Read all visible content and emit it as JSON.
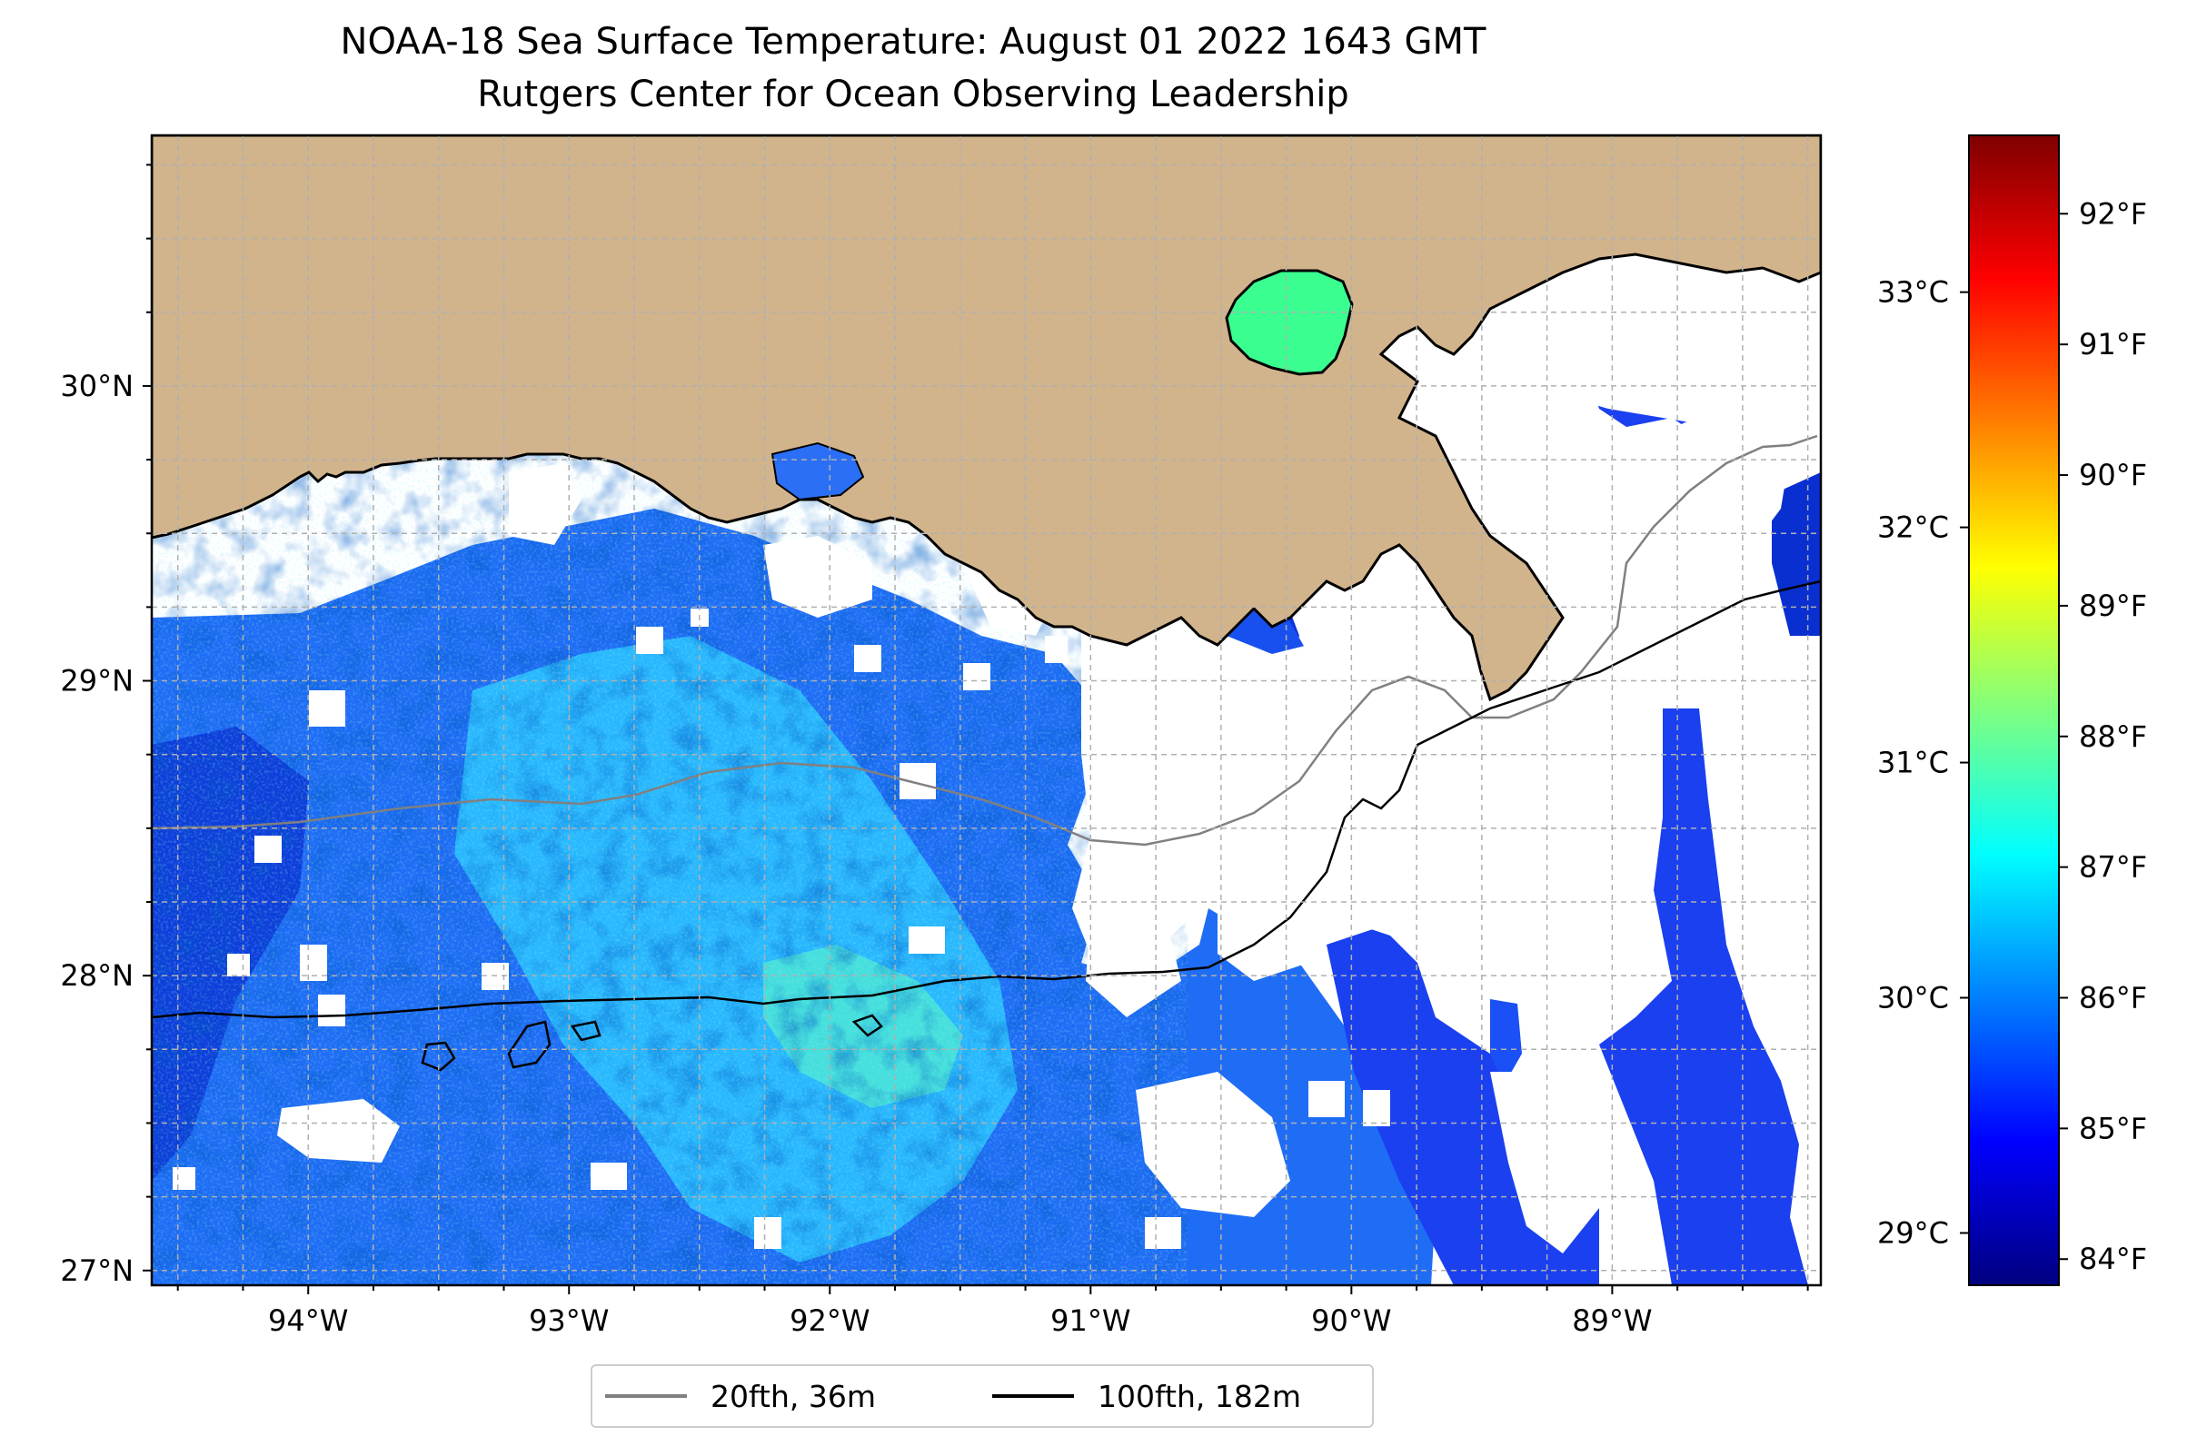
{
  "title": {
    "line1": "NOAA-18 Sea Surface Temperature: August 01 2022 1643 GMT",
    "line2": "Rutgers Center for Ocean Observing Leadership"
  },
  "map": {
    "land_color": "#D2B48C",
    "no_data_color": "#ffffff",
    "grid_color": "#b0b0b0",
    "lat_ticks": [
      {
        "value": 30,
        "label": "30°N"
      },
      {
        "value": 29,
        "label": "29°N"
      },
      {
        "value": 28,
        "label": "28°N"
      },
      {
        "value": 27,
        "label": "27°N"
      }
    ],
    "lon_ticks": [
      {
        "value": -94,
        "label": "94°W"
      },
      {
        "value": -93,
        "label": "93°W"
      },
      {
        "value": -92,
        "label": "92°W"
      },
      {
        "value": -91,
        "label": "91°W"
      },
      {
        "value": -90,
        "label": "90°W"
      },
      {
        "value": -89,
        "label": "89°W"
      }
    ],
    "lon_range": [
      -94.6,
      -88.2
    ],
    "lat_range": [
      26.95,
      30.85
    ]
  },
  "colorbar": {
    "colormap": "jet",
    "stops": [
      "#00007F",
      "#0000FF",
      "#007FFF",
      "#00FFFF",
      "#7FFF7F",
      "#FFFF00",
      "#FF7F00",
      "#FF0000",
      "#7F0000"
    ],
    "range_f": [
      83.8,
      92.6
    ],
    "fahrenheit_ticks": [
      {
        "value": 84,
        "label": "84°F"
      },
      {
        "value": 85,
        "label": "85°F"
      },
      {
        "value": 86,
        "label": "86°F"
      },
      {
        "value": 87,
        "label": "87°F"
      },
      {
        "value": 88,
        "label": "88°F"
      },
      {
        "value": 89,
        "label": "89°F"
      },
      {
        "value": 90,
        "label": "90°F"
      },
      {
        "value": 91,
        "label": "91°F"
      },
      {
        "value": 92,
        "label": "92°F"
      }
    ],
    "celsius_ticks": [
      {
        "value": 29,
        "label": "29°C"
      },
      {
        "value": 30,
        "label": "30°C"
      },
      {
        "value": 31,
        "label": "31°C"
      },
      {
        "value": 32,
        "label": "32°C"
      },
      {
        "value": 33,
        "label": "33°C"
      }
    ]
  },
  "legend": {
    "items": [
      {
        "label": "20fth, 36m",
        "color": "#808080"
      },
      {
        "label": "100fth, 182m",
        "color": "#000000"
      }
    ]
  }
}
